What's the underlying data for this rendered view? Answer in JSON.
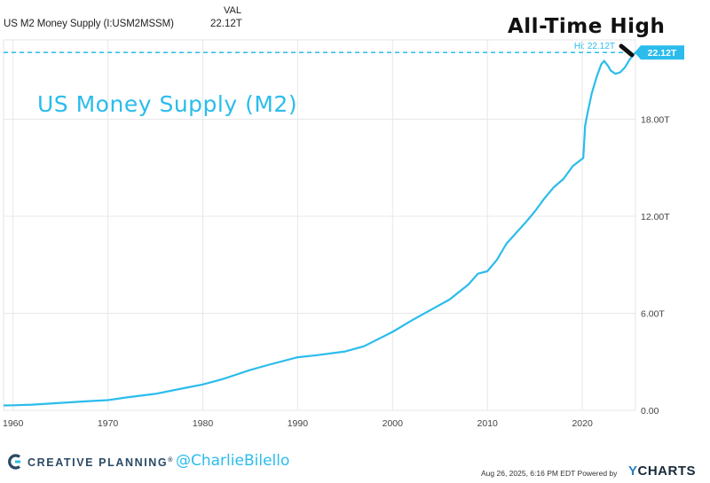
{
  "header": {
    "series_name": "US M2 Money Supply (I:USM2MSSM)",
    "val_label": "VAL",
    "val_value": "22.12T"
  },
  "annotations": {
    "all_time_high": "All-Time High",
    "hi_label": "Hi: 22.12T",
    "last_value_badge": "22.12T"
  },
  "footer": {
    "brand_name": "CREATIVE PLANNING",
    "brand_mark": "®",
    "handle": "@CharlieBilello",
    "timestamp": "Aug 26, 2025, 6:16 PM EDT Powered by",
    "powered_by_logo": "YCHARTS"
  },
  "colors": {
    "series": "#2bbcec",
    "grid": "#e8e8e8",
    "badge": "#2bbcec",
    "brand_text": "#2a4a66"
  },
  "chart_data": {
    "type": "line",
    "title": "US Money Supply (M2)",
    "xlabel": "",
    "ylabel": "",
    "xlim": [
      1959,
      2025.6
    ],
    "ylim": [
      0,
      22.9
    ],
    "x_ticks": [
      "1960",
      "1970",
      "1980",
      "1990",
      "2000",
      "2010",
      "2020"
    ],
    "y_ticks": [
      "0.00",
      "6.00T",
      "12.00T",
      "18.00T"
    ],
    "y_tick_values": [
      0,
      6,
      12,
      18
    ],
    "grid": true,
    "legend": "none",
    "series": [
      {
        "x": [
          1959,
          1960,
          1962,
          1965,
          1968,
          1970,
          1972,
          1975,
          1978,
          1980,
          1982,
          1985,
          1987,
          1990,
          1992,
          1995,
          1997,
          2000,
          2002,
          2004,
          2006,
          2008,
          2009,
          2010,
          2011,
          2012,
          2013,
          2014,
          2015,
          2016,
          2017,
          2018,
          2019,
          2020.1,
          2020.3,
          2020.6,
          2021,
          2021.5,
          2022.0,
          2022.3,
          2022.7,
          2023.0,
          2023.5,
          2024.0,
          2024.5,
          2025.0,
          2025.6
        ],
        "y": [
          0.3,
          0.31,
          0.35,
          0.46,
          0.57,
          0.63,
          0.8,
          1.02,
          1.37,
          1.6,
          1.91,
          2.5,
          2.82,
          3.28,
          3.41,
          3.64,
          3.96,
          4.85,
          5.55,
          6.2,
          6.85,
          7.78,
          8.45,
          8.6,
          9.3,
          10.3,
          10.95,
          11.6,
          12.3,
          13.1,
          13.8,
          14.3,
          15.1,
          15.6,
          17.6,
          18.5,
          19.6,
          20.6,
          21.4,
          21.6,
          21.3,
          21.0,
          20.8,
          20.9,
          21.2,
          21.7,
          22.12
        ]
      }
    ],
    "hi_value": 22.12,
    "last_value": 22.12
  }
}
